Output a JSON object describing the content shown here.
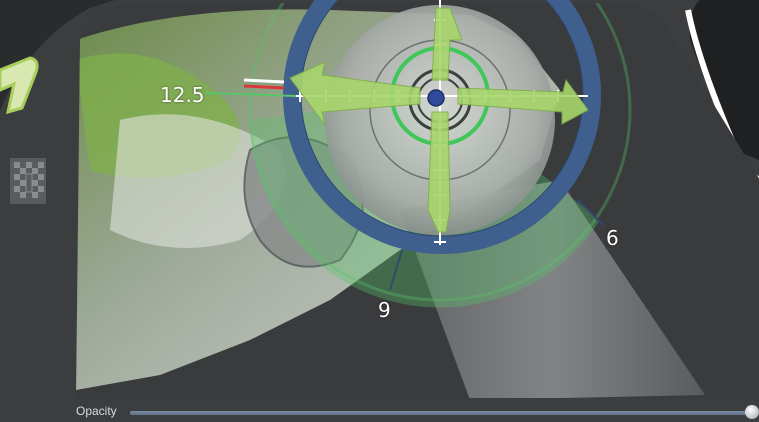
{
  "labels": {
    "angle_left": "12.5",
    "angle_right": "6",
    "angle_bottom": "9"
  },
  "toolbar": {
    "logo_icon": "partial-logo-icon",
    "checker_icon": "checkerboard-icon"
  },
  "opacity": {
    "label": "Opacity",
    "value": 1.0
  },
  "colors": {
    "background": "#3c3d3f",
    "ring_blue": "#3f5f8e",
    "gizmo_green": "#5ac46a",
    "arrow_green": "#a8d66c"
  }
}
